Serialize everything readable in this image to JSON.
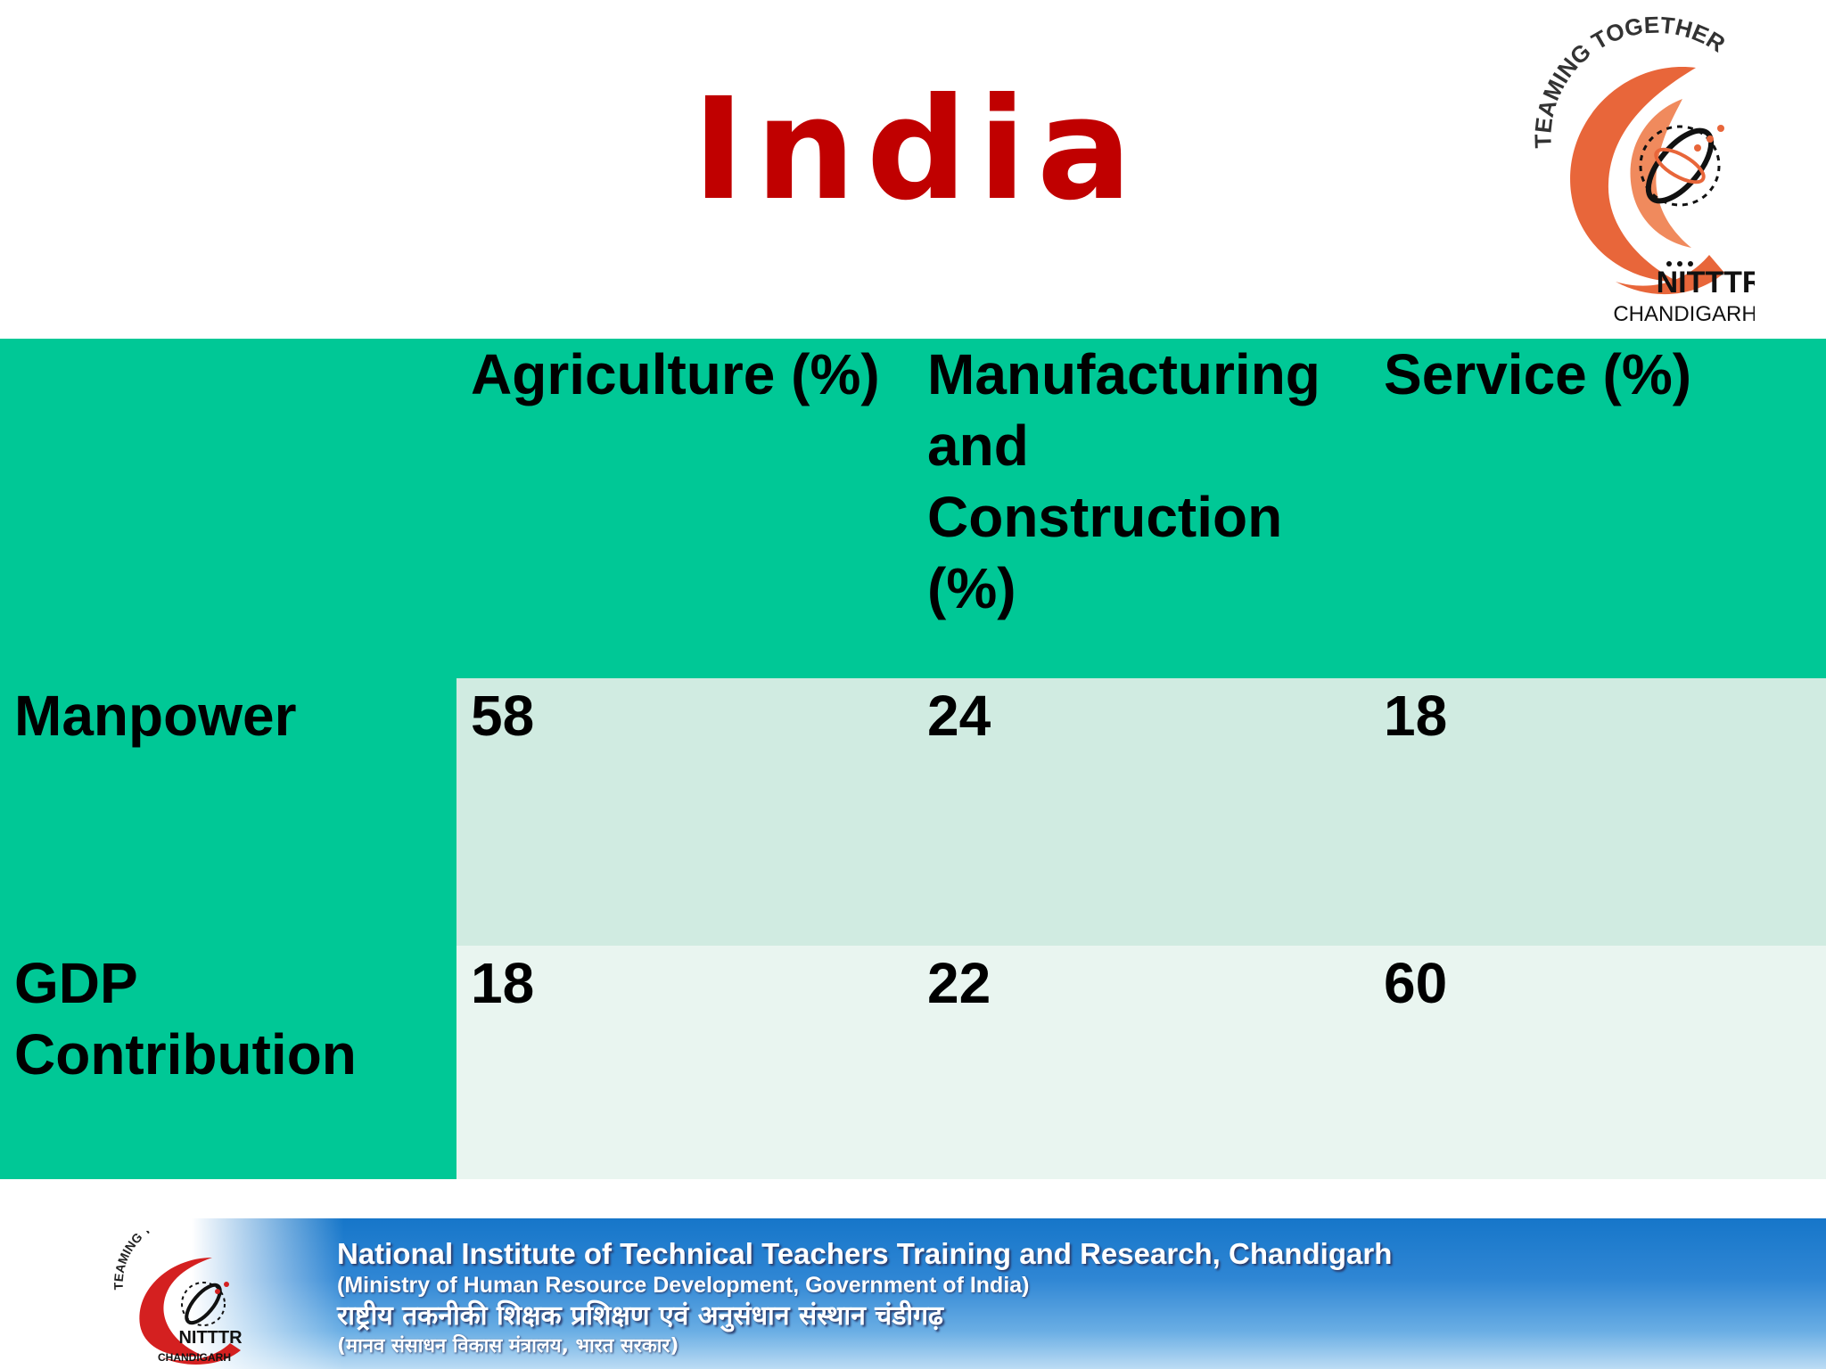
{
  "slide": {
    "title": "India",
    "colors": {
      "title": "#c00000",
      "header_fill": "#00c896",
      "row1_fill": "#d0ebe1",
      "row2_fill": "#e9f5f0",
      "logo_orange": "#e8663a",
      "footer_blue": "#1f7bd0"
    }
  },
  "logo": {
    "arc_text": "TEAMING TOGETHER",
    "name": "NITTTR",
    "city": "CHANDIGARH"
  },
  "table": {
    "columns": [
      "",
      "Agriculture (%)",
      "Manufacturing and Construction (%)",
      "Service (%)"
    ],
    "rows": [
      {
        "label": "Manpower",
        "values": [
          "58",
          "24",
          "18"
        ]
      },
      {
        "label": "GDP Contribution",
        "values": [
          "18",
          "22",
          "60"
        ]
      }
    ]
  },
  "footer": {
    "line1": "National Institute of Technical Teachers Training and Research, Chandigarh",
    "line2": "(Ministry of Human Resource Development, Government of India)",
    "line3": "राष्ट्रीय तकनीकी शिक्षक प्रशिक्षण एवं अनुसंधान संस्थान चंडीगढ़",
    "line4": "(मानव संसाधन विकास मंत्रालय, भारत सरकार)",
    "logo_arc_text": "TEAMING TOGETHER",
    "logo_name": "NITTTR",
    "logo_city": "CHANDIGARH"
  }
}
